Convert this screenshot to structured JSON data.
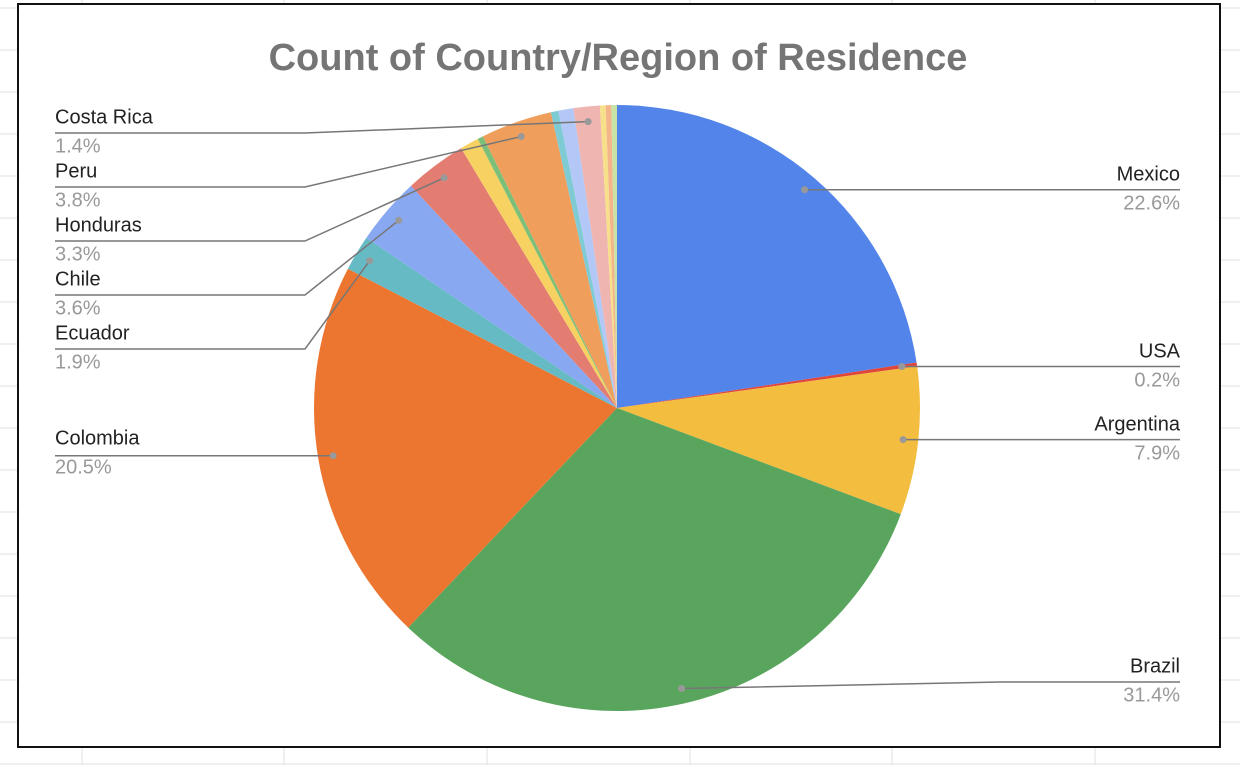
{
  "chart_data": {
    "type": "pie",
    "title": "Count of Country/Region of Residence",
    "categories": [
      "Mexico",
      "USA",
      "Argentina",
      "Brazil",
      "Colombia",
      "Ecuador",
      "Chile",
      "Honduras",
      null,
      null,
      "Peru",
      null,
      null,
      "Costa Rica",
      null,
      null,
      null
    ],
    "values": [
      22.6,
      0.2,
      7.9,
      31.4,
      20.5,
      1.9,
      3.6,
      3.3,
      1.0,
      0.3,
      3.8,
      0.4,
      0.8,
      1.4,
      0.3,
      0.3,
      0.3
    ],
    "value_labels": [
      "22.6%",
      "0.2%",
      "7.9%",
      "31.4%",
      "20.5%",
      "1.9%",
      "3.6%",
      "3.3%",
      null,
      null,
      "3.8%",
      null,
      null,
      "1.4%",
      null,
      null,
      null
    ],
    "colors": [
      "#5384ea",
      "#e0463b",
      "#f3bd3f",
      "#59a55d",
      "#ec762f",
      "#65bac4",
      "#88a8f2",
      "#e47d71",
      "#f7d162",
      "#7cbf79",
      "#f09e5c",
      "#7fcbd3",
      "#b3c8f7",
      "#efb5b1",
      "#f7e08a",
      "#f4b58a",
      "#c9e3a7"
    ]
  }
}
